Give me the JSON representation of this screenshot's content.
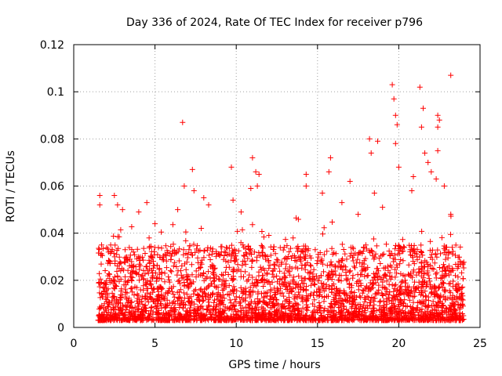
{
  "chart_data": {
    "type": "scatter",
    "title": "Day 336 of 2024, Rate Of TEC Index for receiver p796",
    "xlabel": "GPS time / hours",
    "ylabel": "ROTI / TECUs",
    "xlim": [
      0,
      25
    ],
    "ylim": [
      0,
      0.12
    ],
    "xticks": [
      "0",
      "5",
      "10",
      "15",
      "20",
      "25"
    ],
    "yticks": [
      "0",
      "0.02",
      "0.04",
      "0.06",
      "0.08",
      "0.1",
      "0.12"
    ],
    "grid": true,
    "marker": "+",
    "series_color": "#ff0000",
    "x_range_of_data": [
      1.5,
      24.0
    ],
    "typical_range": [
      0.003,
      0.035
    ],
    "outliers": [
      {
        "x": 1.6,
        "y": 0.056
      },
      {
        "x": 1.6,
        "y": 0.052
      },
      {
        "x": 2.5,
        "y": 0.056
      },
      {
        "x": 2.7,
        "y": 0.052
      },
      {
        "x": 3.0,
        "y": 0.05
      },
      {
        "x": 4.0,
        "y": 0.049
      },
      {
        "x": 4.5,
        "y": 0.053
      },
      {
        "x": 5.0,
        "y": 0.044
      },
      {
        "x": 6.4,
        "y": 0.05
      },
      {
        "x": 6.7,
        "y": 0.087
      },
      {
        "x": 6.8,
        "y": 0.06
      },
      {
        "x": 7.3,
        "y": 0.067
      },
      {
        "x": 7.4,
        "y": 0.058
      },
      {
        "x": 8.0,
        "y": 0.055
      },
      {
        "x": 8.3,
        "y": 0.052
      },
      {
        "x": 9.7,
        "y": 0.068
      },
      {
        "x": 9.8,
        "y": 0.054
      },
      {
        "x": 10.3,
        "y": 0.049
      },
      {
        "x": 11.0,
        "y": 0.072
      },
      {
        "x": 11.2,
        "y": 0.066
      },
      {
        "x": 11.4,
        "y": 0.065
      },
      {
        "x": 10.9,
        "y": 0.059
      },
      {
        "x": 11.3,
        "y": 0.06
      },
      {
        "x": 13.5,
        "y": 0.038
      },
      {
        "x": 14.3,
        "y": 0.065
      },
      {
        "x": 14.3,
        "y": 0.06
      },
      {
        "x": 15.3,
        "y": 0.057
      },
      {
        "x": 15.8,
        "y": 0.072
      },
      {
        "x": 15.7,
        "y": 0.066
      },
      {
        "x": 16.5,
        "y": 0.053
      },
      {
        "x": 17.0,
        "y": 0.062
      },
      {
        "x": 17.5,
        "y": 0.048
      },
      {
        "x": 18.2,
        "y": 0.08
      },
      {
        "x": 18.3,
        "y": 0.074
      },
      {
        "x": 18.5,
        "y": 0.057
      },
      {
        "x": 18.7,
        "y": 0.079
      },
      {
        "x": 19.0,
        "y": 0.051
      },
      {
        "x": 19.6,
        "y": 0.103
      },
      {
        "x": 19.7,
        "y": 0.097
      },
      {
        "x": 19.8,
        "y": 0.09
      },
      {
        "x": 19.9,
        "y": 0.086
      },
      {
        "x": 19.8,
        "y": 0.078
      },
      {
        "x": 20.0,
        "y": 0.068
      },
      {
        "x": 20.9,
        "y": 0.064
      },
      {
        "x": 20.8,
        "y": 0.058
      },
      {
        "x": 21.3,
        "y": 0.102
      },
      {
        "x": 21.5,
        "y": 0.093
      },
      {
        "x": 21.4,
        "y": 0.085
      },
      {
        "x": 21.6,
        "y": 0.074
      },
      {
        "x": 21.8,
        "y": 0.07
      },
      {
        "x": 22.0,
        "y": 0.066
      },
      {
        "x": 22.4,
        "y": 0.09
      },
      {
        "x": 22.5,
        "y": 0.088
      },
      {
        "x": 22.4,
        "y": 0.085
      },
      {
        "x": 22.4,
        "y": 0.075
      },
      {
        "x": 22.3,
        "y": 0.063
      },
      {
        "x": 22.8,
        "y": 0.06
      },
      {
        "x": 23.2,
        "y": 0.107
      },
      {
        "x": 23.2,
        "y": 0.048
      }
    ]
  }
}
